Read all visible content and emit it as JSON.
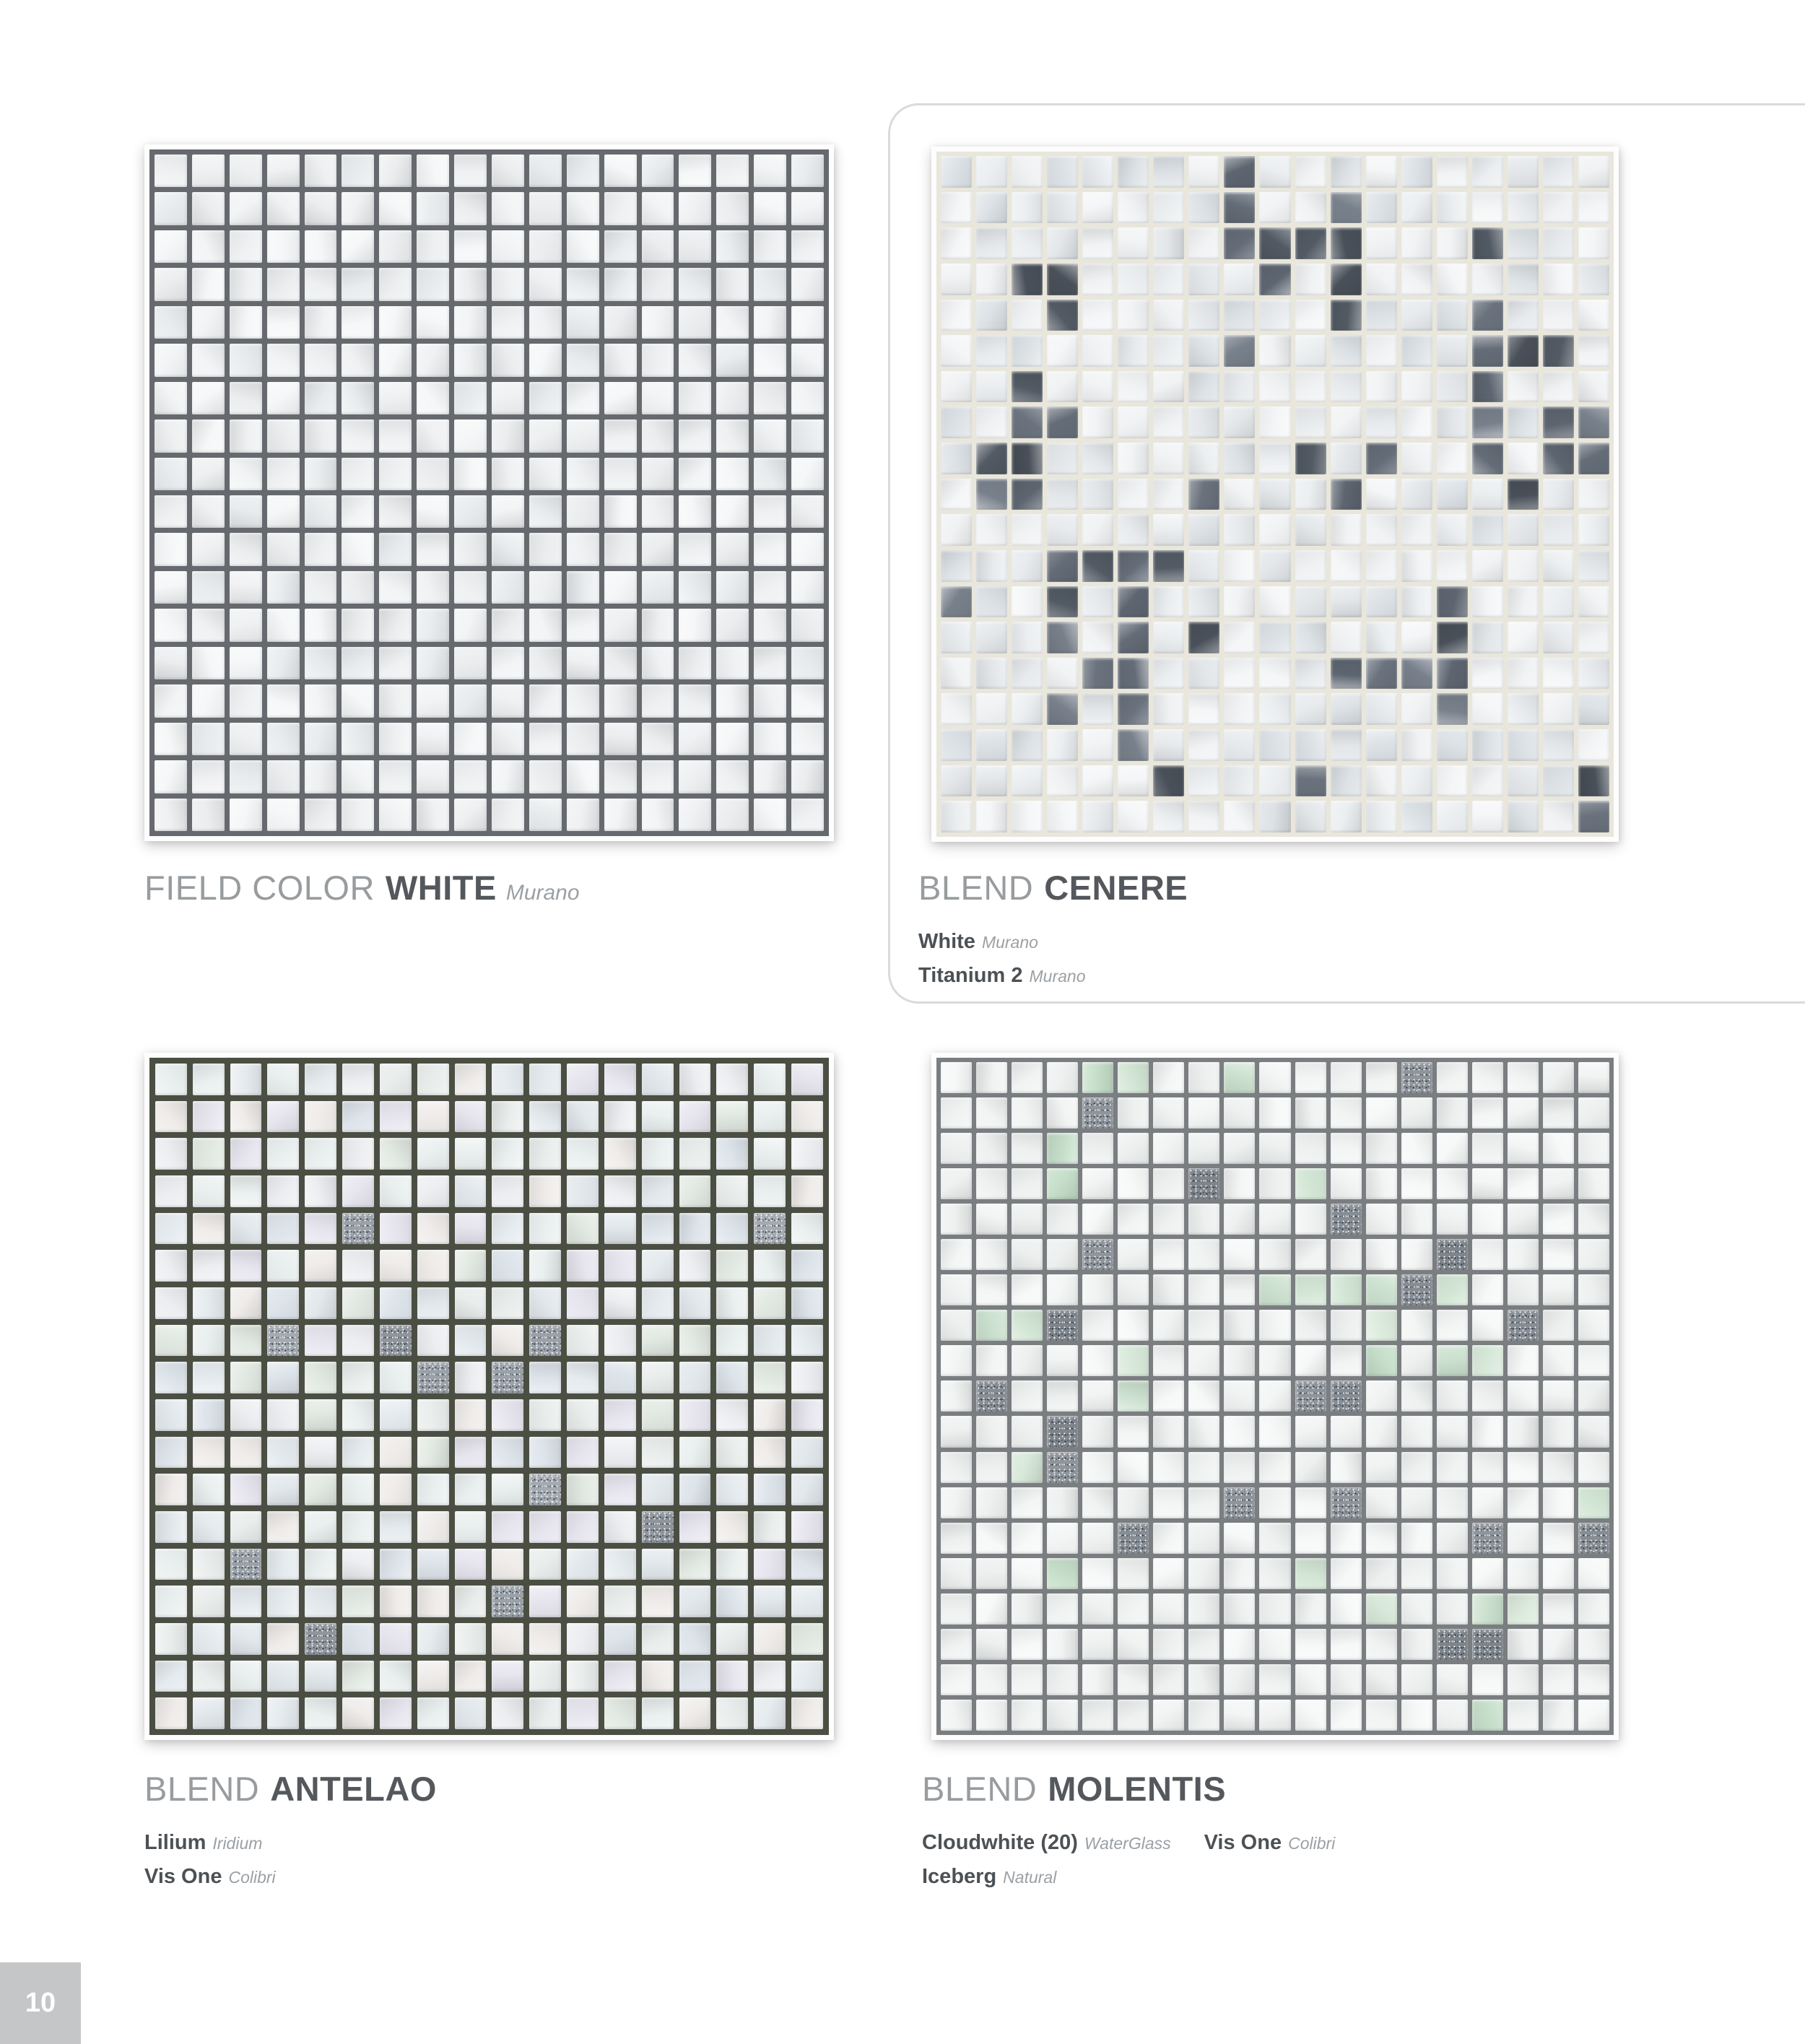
{
  "page": {
    "number": "10",
    "background": "#ffffff",
    "card_border_color": "#d9dadb"
  },
  "groups": [
    {
      "id": "field_white",
      "prefix": "FIELD COLOR",
      "name": "WHITE",
      "variant": "Murano",
      "components": []
    },
    {
      "id": "cenere",
      "prefix": "BLEND",
      "name": "CENERE",
      "variant": "",
      "components": [
        {
          "name": "White",
          "variant": "Murano"
        },
        {
          "name": "Titanium 2",
          "variant": "Murano"
        }
      ]
    },
    {
      "id": "antelao",
      "prefix": "BLEND",
      "name": "ANTELAO",
      "variant": "",
      "components": [
        {
          "name": "Lilium",
          "variant": "Iridium"
        },
        {
          "name": "Vis One",
          "variant": "Colibri"
        }
      ]
    },
    {
      "id": "molentis",
      "prefix": "BLEND",
      "name": "MOLENTIS",
      "variant": "",
      "components": [
        {
          "name": "Cloudwhite (20)",
          "variant": "WaterGlass"
        },
        {
          "name": "Vis One",
          "variant": "Colibri"
        },
        {
          "name": "Iceberg",
          "variant": "Natural"
        }
      ]
    }
  ],
  "swatches": {
    "field_white": {
      "cols": 18,
      "rows": 18,
      "gap": 7,
      "grout": "#666a6e",
      "palettes": {
        "base": [
          "#f2f4f5",
          "#eef0f1",
          "#f6f7f8",
          "#e9ecee",
          "#f0f1f3",
          "#ecedef"
        ]
      },
      "specials": []
    },
    "cenere": {
      "cols": 19,
      "rows": 19,
      "gap": 6,
      "grout": "#e9e6db",
      "palettes": {
        "base": [
          "#f1f3f4",
          "#eceff1",
          "#f5f6f7",
          "#e3e7ea",
          "#dde2e6",
          "#f0f2f3",
          "#e8ebee"
        ],
        "dark": [
          "#5d6570",
          "#525a64",
          "#6a727d",
          "#78808b",
          "#495059",
          "#646c77"
        ]
      },
      "specials": [
        {
          "type": "dark",
          "fraction": 0.13,
          "cluster": true,
          "cluster_boost": 0.34
        }
      ]
    },
    "antelao": {
      "cols": 18,
      "rows": 18,
      "gap": 8,
      "grout": "#4b4f43",
      "palettes": {
        "base": [
          "#e9edec",
          "#e2e8ec",
          "#e7e5ee",
          "#e2e9e2",
          "#edeef1",
          "#dde4ea",
          "#efecea",
          "#e5ebee",
          "#eaf0ef"
        ],
        "sparkle": [
          "#9aa1a9",
          "#8f959d",
          "#a4aab1"
        ]
      },
      "specials": [
        {
          "type": "sparkle",
          "fraction": 0.04
        }
      ]
    },
    "molentis": {
      "cols": 19,
      "rows": 19,
      "gap": 6,
      "grout": "#7a7e81",
      "palettes": {
        "base": [
          "#f4f6f6",
          "#f0f3f2",
          "#f7f8f8",
          "#eef1f0",
          "#f2f4f3",
          "#edf0ef"
        ],
        "sparkle": [
          "#868d95",
          "#7d848c",
          "#8e959c"
        ],
        "mint": [
          "#d3e6d5",
          "#cce1cf",
          "#dcebdd",
          "#c6dfca",
          "#d8e9da"
        ]
      },
      "specials": [
        {
          "type": "sparkle",
          "fraction": 0.08
        },
        {
          "type": "mint",
          "fraction": 0.075,
          "cluster": true,
          "cluster_boost": 0.22
        }
      ]
    }
  }
}
